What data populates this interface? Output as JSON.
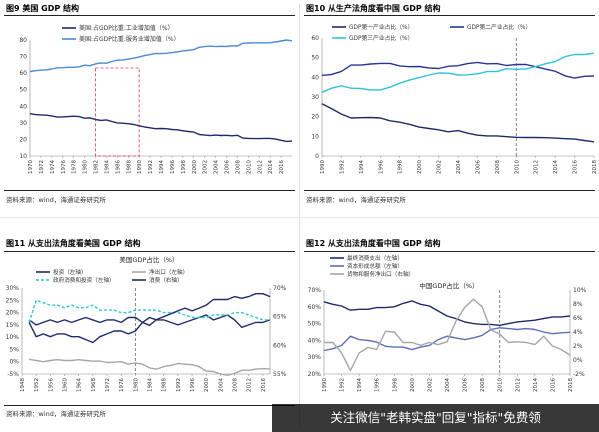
{
  "panels": [
    {
      "title": "图9  美国 GDP 结构",
      "source": "资料来源：wind，海通证券研究所",
      "chart_data": {
        "type": "line",
        "title": "",
        "x": [
          1970,
          1971,
          1972,
          1973,
          1974,
          1975,
          1976,
          1977,
          1978,
          1979,
          1980,
          1981,
          1982,
          1983,
          1984,
          1985,
          1986,
          1987,
          1988,
          1989,
          1990,
          1991,
          1992,
          1993,
          1994,
          1995,
          1996,
          1997,
          1998,
          1999,
          2000,
          2001,
          2002,
          2003,
          2004,
          2005,
          2006,
          2007,
          2008,
          2009,
          2010,
          2011,
          2012,
          2013,
          2014,
          2015,
          2016,
          2017,
          2018
        ],
        "xticks": [
          1970,
          1972,
          1974,
          1976,
          1978,
          1980,
          1982,
          1984,
          1986,
          1988,
          1990,
          1992,
          1994,
          1996,
          1998,
          2000,
          2002,
          2004,
          2006,
          2008,
          2010,
          2012,
          2014,
          2016
        ],
        "ylim": [
          10,
          80
        ],
        "yticks": [
          10,
          20,
          30,
          40,
          50,
          60,
          70,
          80
        ],
        "grid": false,
        "legend_position": "top",
        "highlight": "dashed red box 1982–1990",
        "series": [
          {
            "name": "美国:占GDP比重:工业增加值（%）",
            "color": "#1f2a6b",
            "values": [
              35.5,
              35,
              34.8,
              34.6,
              34.2,
              33.5,
              33.6,
              33.8,
              34,
              33.8,
              32.8,
              33,
              32,
              31.5,
              31.8,
              30.8,
              30,
              29.8,
              29.5,
              29,
              28.2,
              27.5,
              27,
              26.5,
              26.6,
              26.5,
              26,
              25.8,
              25.2,
              24.8,
              24.4,
              23,
              22.6,
              22.3,
              22.6,
              22.4,
              22.5,
              22.2,
              22.5,
              20.8,
              20.6,
              20.5,
              20.5,
              20.6,
              20.6,
              20.2,
              19.5,
              18.8,
              19
            ]
          },
          {
            "name": "美国:占GDP比重:服务业增加值（%）",
            "color": "#4a8bd4",
            "values": [
              61,
              61.5,
              61.8,
              62,
              62.5,
              63.2,
              63.3,
              63.5,
              63.5,
              63.8,
              64.8,
              64.5,
              65.6,
              66.2,
              66,
              67,
              67.8,
              68,
              68.5,
              69,
              69.8,
              70.6,
              71.2,
              71.8,
              71.8,
              72,
              72.4,
              72.8,
              73.4,
              73.8,
              74.2,
              75.6,
              76,
              76.3,
              76,
              76.2,
              76.1,
              76.5,
              76.4,
              78,
              78.2,
              78.3,
              78.3,
              78.3,
              78.4,
              78.8,
              79.4,
              80,
              79.5
            ]
          }
        ]
      }
    },
    {
      "title": "图10 从生产法角度看中国 GDP 结构",
      "source": "资料来源：wind，海通证券研究所",
      "chart_data": {
        "type": "line",
        "title": "",
        "x": [
          1990,
          1991,
          1992,
          1993,
          1994,
          1995,
          1996,
          1997,
          1998,
          1999,
          2000,
          2001,
          2002,
          2003,
          2004,
          2005,
          2006,
          2007,
          2008,
          2009,
          2010,
          2011,
          2012,
          2013,
          2014,
          2015,
          2016,
          2017,
          2018
        ],
        "xticks": [
          1990,
          1992,
          1994,
          1996,
          1998,
          2000,
          2002,
          2004,
          2006,
          2008,
          2010,
          2012,
          2014,
          2016,
          2018
        ],
        "ylim": [
          0,
          60
        ],
        "yticks": [
          0,
          10,
          20,
          30,
          40,
          50,
          60
        ],
        "grid": false,
        "legend_position": "top",
        "dashed_vline": 2010,
        "series": [
          {
            "name": "GDP第一产业占比（%）",
            "color": "#1f2a6b",
            "values": [
              26.6,
              24,
              21.3,
              19.3,
              19.5,
              19.6,
              19.3,
              17.9,
              17.2,
              16.1,
              14.7,
              14,
              13.3,
              12.3,
              12.9,
              11.6,
              10.6,
              10.2,
              10.2,
              9.8,
              9.5,
              9.4,
              9.4,
              9.3,
              9.1,
              8.8,
              8.6,
              7.9,
              7.2
            ]
          },
          {
            "name": "GDP第二产业占比（%）",
            "color": "#2a3590",
            "values": [
              41,
              41.5,
              43,
              46.2,
              46.2,
              46.8,
              47.1,
              47.1,
              45.8,
              45.4,
              45.5,
              44.8,
              44.5,
              45.6,
              45.9,
              47,
              47.6,
              46.9,
              47,
              46,
              46.5,
              46.5,
              45.4,
              44.2,
              43.1,
              40.8,
              39.6,
              40.5,
              40.7
            ]
          },
          {
            "name": "GDP第三产业占比（%）",
            "color": "#2ec4d6",
            "values": [
              32.4,
              34.5,
              35.7,
              34.5,
              34.3,
              33.6,
              33.6,
              35,
              37,
              38.6,
              39.8,
              41.2,
              42.2,
              42.1,
              41.2,
              41.3,
              41.8,
              42.9,
              42.9,
              44.4,
              44.1,
              44.3,
              45.5,
              46.9,
              48,
              50.5,
              51.6,
              51.6,
              52.2
            ]
          }
        ]
      }
    },
    {
      "title": "图11 从支出法角度看美国 GDP 结构",
      "source": "资料来源：wind，海通证券研究所",
      "chart_data": {
        "type": "line",
        "title": "美国GDP占比（%）",
        "x": [
          1950,
          1952,
          1954,
          1956,
          1958,
          1960,
          1962,
          1964,
          1966,
          1968,
          1970,
          1972,
          1974,
          1976,
          1978,
          1980,
          1982,
          1984,
          1986,
          1988,
          1990,
          1992,
          1994,
          1996,
          1998,
          2000,
          2002,
          2004,
          2006,
          2008,
          2010,
          2012,
          2014,
          2016,
          2018
        ],
        "xticks": [
          1948,
          1952,
          1956,
          1960,
          1964,
          1968,
          1972,
          1976,
          1980,
          1984,
          1988,
          1992,
          1996,
          2000,
          2004,
          2008,
          2012,
          2016
        ],
        "xlim": [
          1948,
          2018
        ],
        "ylim_left": [
          -5,
          30
        ],
        "yticks_left": [
          -5,
          0,
          5,
          10,
          15,
          20,
          25,
          30
        ],
        "ylim_right": [
          55,
          70
        ],
        "yticks_right": [
          55,
          60,
          65,
          70
        ],
        "left_tick_labels": [
          "-5%",
          "0%",
          "5%",
          "10%",
          "15%",
          "20%",
          "25%",
          "30%"
        ],
        "right_tick_labels": [
          "55%",
          "60%",
          "65%",
          "70%"
        ],
        "grid": false,
        "legend_position": "top",
        "dashed_vline": 1980,
        "series": [
          {
            "name": "投资（左轴）",
            "color": "#1f2a6b",
            "axis": "left",
            "values": [
              17,
              15,
              16,
              17,
              16,
              17,
              16,
              17,
              18,
              17,
              16,
              17,
              17,
              16,
              18,
              18,
              16,
              18,
              17,
              17,
              16,
              15,
              16,
              17,
              18,
              19,
              17,
              18,
              19,
              17,
              14,
              15,
              16,
              16,
              17
            ]
          },
          {
            "name": "净出口（左轴）",
            "color": "#a6a6a6",
            "axis": "left",
            "values": [
              1,
              0.5,
              0,
              0.5,
              0.8,
              0.5,
              0.5,
              0.8,
              0.5,
              0.2,
              0.3,
              -0.3,
              -0.2,
              0,
              -1,
              -0.5,
              -1,
              -2.5,
              -3,
              -2,
              -1.5,
              -0.7,
              -1,
              -1.2,
              -2,
              -3.8,
              -4,
              -5,
              -5.5,
              -4.8,
              -3.5,
              -3.5,
              -3,
              -2.8,
              -3
            ]
          },
          {
            "name": "政府消费和投资（左轴）",
            "color": "#2ec4d6",
            "axis": "left",
            "values": [
              16,
              25,
              24,
              23,
              23,
              22,
              23,
              22,
              22,
              23,
              21,
              21,
              21,
              20,
              20,
              21,
              21,
              21,
              21,
              20,
              20,
              20,
              19,
              18,
              18,
              18,
              19,
              19,
              19,
              20,
              20,
              19,
              18,
              17,
              17
            ]
          },
          {
            "name": "消费（右轴）",
            "color": "#1f2a6b",
            "axis": "right",
            "values": [
              64,
              61.5,
              62,
              61.5,
              62,
              62,
              61.5,
              61.5,
              61,
              60.5,
              61.5,
              62,
              62.5,
              62.5,
              62,
              62.5,
              64,
              63.5,
              64.5,
              65,
              65.5,
              66,
              66.5,
              66,
              66.5,
              67,
              68,
              68,
              68,
              68.5,
              68.2,
              68.5,
              69,
              69,
              68.5
            ]
          }
        ]
      }
    },
    {
      "title": "图12 从支出法角度看中国 GDP 结构",
      "source": "",
      "chart_data": {
        "type": "line",
        "title": "中国GDP占比（%）",
        "x": [
          1990,
          1991,
          1992,
          1993,
          1994,
          1995,
          1996,
          1997,
          1998,
          1999,
          2000,
          2001,
          2002,
          2003,
          2004,
          2005,
          2006,
          2007,
          2008,
          2009,
          2010,
          2011,
          2012,
          2013,
          2014,
          2015,
          2016,
          2017,
          2018
        ],
        "xticks": [
          1990,
          1992,
          1994,
          1996,
          1998,
          2000,
          2002,
          2004,
          2006,
          2008,
          2010,
          2012,
          2014,
          2016,
          2018
        ],
        "ylim_left": [
          20,
          70
        ],
        "yticks_left": [
          20,
          30,
          40,
          50,
          60,
          70
        ],
        "ylim_right": [
          -2,
          10
        ],
        "yticks_right": [
          -2,
          0,
          2,
          4,
          6,
          8,
          10
        ],
        "left_tick_labels": [
          "20%",
          "30%",
          "40%",
          "50%",
          "60%",
          "70%"
        ],
        "right_tick_labels": [
          "-2%",
          "0%",
          "2%",
          "4%",
          "6%",
          "8%",
          "10%"
        ],
        "grid": false,
        "legend_position": "top-left",
        "dashed_vline": 2010,
        "series": [
          {
            "name": "最终消费支出（左轴）",
            "color": "#1f2a6b",
            "axis": "left",
            "values": [
              63,
              61.5,
              60.5,
              58,
              58.5,
              58.5,
              59.5,
              59.5,
              60,
              62,
              63.5,
              61.5,
              60.5,
              57.5,
              54.5,
              53,
              51,
              50,
              49.5,
              49.5,
              49,
              50,
              51,
              51.5,
              52,
              53,
              54,
              54,
              54.5
            ]
          },
          {
            "name": "资本形成总额（左轴）",
            "color": "#5b6fb5",
            "axis": "left",
            "values": [
              34,
              35,
              37,
              42.5,
              40.5,
              40,
              39,
              36.5,
              36,
              36,
              34.5,
              36,
              37,
              40.5,
              42.5,
              41.5,
              40.5,
              41.5,
              43,
              46.5,
              47.5,
              47,
              46.5,
              47,
              46.5,
              45,
              44,
              44.5,
              44.8
            ]
          },
          {
            "name": "货物和服务净出口（右轴）",
            "color": "#a6a6a6",
            "axis": "right",
            "values": [
              2.5,
              2.5,
              1,
              -1.5,
              1,
              1.8,
              1.5,
              4.1,
              4,
              2.5,
              2.5,
              2.1,
              2.5,
              2.2,
              2.6,
              5.5,
              7.5,
              8.7,
              7.6,
              4.3,
              3.7,
              2.5,
              2.6,
              2.5,
              2.2,
              3.4,
              2,
              1.5,
              0.7
            ]
          }
        ]
      }
    }
  ],
  "watermark": "关注微信\"老韩实盘\"回复\"指标\"免费领"
}
